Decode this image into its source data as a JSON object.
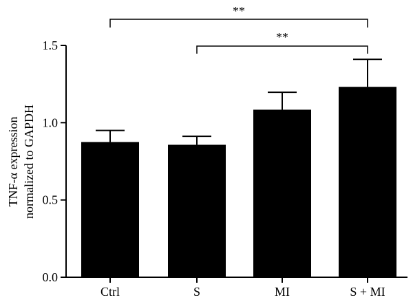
{
  "chart_data": {
    "type": "bar",
    "categories": [
      "Ctrl",
      "S",
      "MI",
      "S + MI"
    ],
    "values": [
      0.875,
      0.857,
      1.084,
      1.232
    ],
    "error_upper": [
      0.95,
      0.912,
      1.197,
      1.41
    ],
    "ylabel_line1": "TNF-α expression",
    "ylabel_line2": "normalized to GAPDH",
    "ylim": [
      0,
      1.5
    ],
    "yticks": [
      0.0,
      0.5,
      1.0,
      1.5
    ],
    "ytick_labels": [
      "0.0",
      "0.5",
      "1.0",
      "1.5"
    ],
    "bar_color": "#000000",
    "significance": [
      {
        "from": 0,
        "to": 3,
        "label": "**"
      },
      {
        "from": 1,
        "to": 3,
        "label": "**"
      }
    ]
  }
}
